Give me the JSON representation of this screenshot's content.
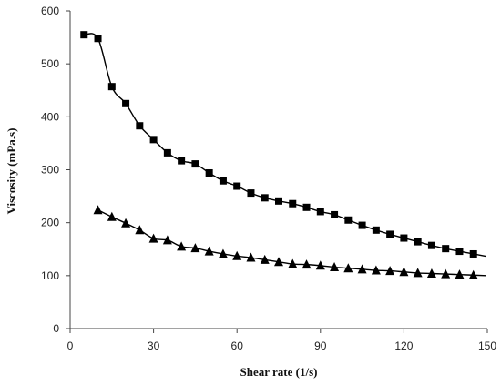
{
  "chart_data": {
    "type": "scatter",
    "xlabel": "Shear rate (1/s)",
    "ylabel": "Viscosity (mPa.s)",
    "xlim": [
      0,
      150
    ],
    "ylim": [
      0,
      600
    ],
    "xticks": [
      0,
      30,
      60,
      90,
      120,
      150
    ],
    "yticks": [
      0,
      100,
      200,
      300,
      400,
      500,
      600
    ],
    "grid": false,
    "legend": "none",
    "series": [
      {
        "marker": "square",
        "color": "#000000",
        "x": [
          5,
          10,
          15,
          20,
          25,
          30,
          35,
          40,
          45,
          50,
          55,
          60,
          65,
          70,
          75,
          80,
          85,
          90,
          95,
          100,
          105,
          110,
          115,
          120,
          125,
          130,
          135,
          140,
          145
        ],
        "y": [
          555,
          548,
          457,
          425,
          383,
          357,
          332,
          317,
          311,
          294,
          279,
          269,
          256,
          247,
          241,
          236,
          229,
          221,
          215,
          205,
          195,
          186,
          178,
          171,
          164,
          157,
          151,
          146,
          141
        ]
      },
      {
        "marker": "triangle",
        "color": "#000000",
        "x": [
          10,
          15,
          20,
          25,
          30,
          35,
          40,
          45,
          50,
          55,
          60,
          65,
          70,
          75,
          80,
          85,
          90,
          95,
          100,
          105,
          110,
          115,
          120,
          125,
          130,
          135,
          140,
          145
        ],
        "y": [
          224,
          211,
          199,
          186,
          170,
          167,
          155,
          152,
          146,
          141,
          137,
          134,
          130,
          126,
          122,
          121,
          119,
          116,
          114,
          112,
          110,
          109,
          107,
          105,
          104,
          103,
          102,
          101
        ]
      }
    ]
  }
}
